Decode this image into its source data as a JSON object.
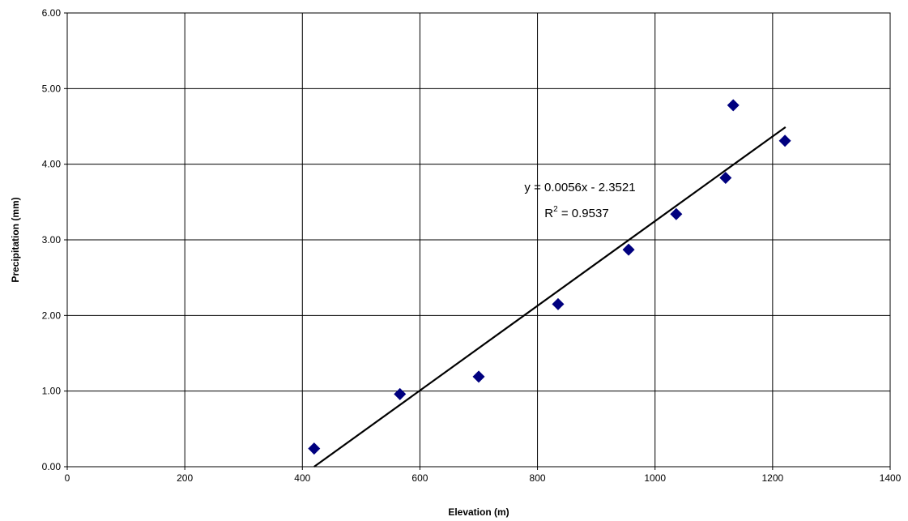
{
  "chart_data": {
    "type": "scatter",
    "title": "",
    "xlabel": "Elevation (m)",
    "ylabel": "Precipitation (mm)",
    "xlim": [
      0,
      1400
    ],
    "ylim": [
      0,
      6
    ],
    "x_ticks": [
      0,
      200,
      400,
      600,
      800,
      1000,
      1200,
      1400
    ],
    "y_ticks": [
      0,
      1,
      2,
      3,
      4,
      5,
      6
    ],
    "x_tick_labels": [
      "0",
      "200",
      "400",
      "600",
      "800",
      "1000",
      "1200",
      "1400"
    ],
    "y_tick_labels": [
      "0.00",
      "1.00",
      "2.00",
      "3.00",
      "4.00",
      "5.00",
      "6.00"
    ],
    "grid": true,
    "legend": false,
    "marker_color": "#00007f",
    "line_color": "#000000",
    "series": [
      {
        "x": [
          420,
          566,
          700,
          835,
          955,
          1036,
          1120,
          1133,
          1221
        ],
        "y": [
          0.24,
          0.96,
          1.19,
          2.15,
          2.87,
          3.34,
          3.82,
          4.78,
          4.31
        ]
      }
    ],
    "trendline": {
      "slope": 0.0056,
      "intercept": -2.3521,
      "x_range": [
        420,
        1222
      ],
      "equation": "y = 0.0056x - 2.3521",
      "r2_prefix": "R",
      "r2_exponent": "2",
      "r2_value": " = 0.9537"
    }
  }
}
